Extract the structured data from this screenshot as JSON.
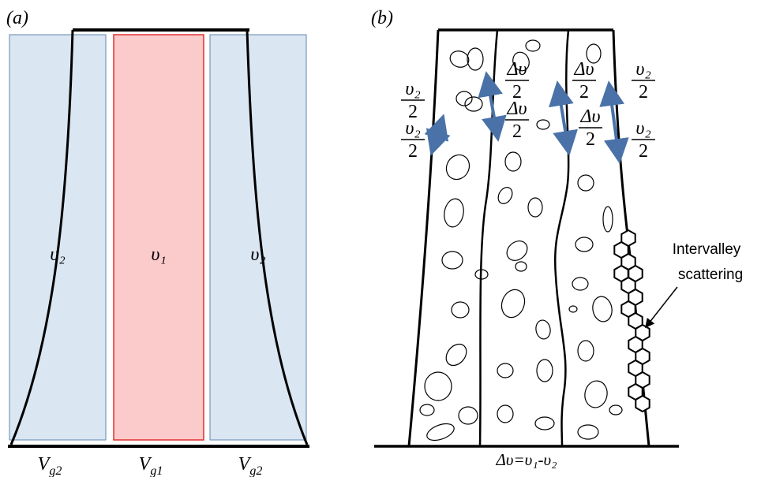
{
  "panel_a": {
    "label": "(a)",
    "regions": [
      "υ₂",
      "υ₁",
      "υ₂"
    ],
    "gates": [
      {
        "text": "V",
        "sub": "g2"
      },
      {
        "text": "V",
        "sub": "g1"
      },
      {
        "text": "V",
        "sub": "g2"
      }
    ]
  },
  "panel_b": {
    "label": "(b)",
    "fractions": [
      {
        "numerator": "υ₂",
        "denominator": "2"
      },
      {
        "numerator": "υ₂",
        "denominator": "2"
      },
      {
        "numerator": "Δυ",
        "denominator": "2"
      },
      {
        "numerator": "Δυ",
        "denominator": "2"
      },
      {
        "numerator": "Δυ",
        "denominator": "2"
      },
      {
        "numerator": "Δυ",
        "denominator": "2"
      },
      {
        "numerator": "υ₂",
        "denominator": "2"
      },
      {
        "numerator": "υ₂",
        "denominator": "2"
      }
    ],
    "annotation": [
      "Intervalley",
      "scattering"
    ],
    "caption": "Δυ=υ₁-υ₂"
  }
}
